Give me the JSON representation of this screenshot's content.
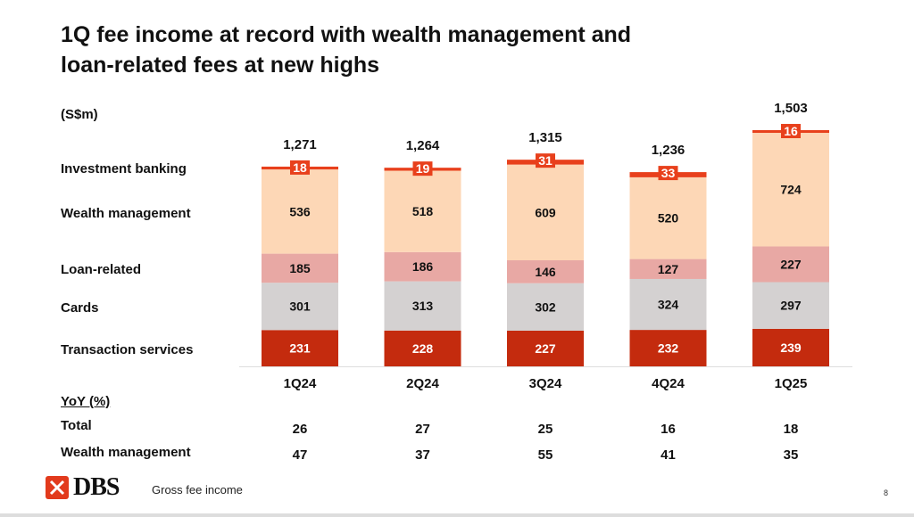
{
  "title_line1": "1Q fee income at record with wealth management and",
  "title_line2": "loan-related fees at new highs",
  "footer": "Gross fee income",
  "page_number": "8",
  "logo_text": "DBS",
  "chart_data": {
    "type": "bar",
    "stacked": true,
    "unit_label": "(S$m)",
    "categories": [
      "1Q24",
      "2Q24",
      "3Q24",
      "4Q24",
      "1Q25"
    ],
    "series": [
      {
        "name": "Transaction services",
        "values": [
          231,
          228,
          227,
          232,
          239
        ],
        "color": "#c42b0e"
      },
      {
        "name": "Cards",
        "values": [
          301,
          313,
          302,
          324,
          297
        ],
        "color": "#d4d1d1"
      },
      {
        "name": "Loan-related",
        "values": [
          185,
          186,
          146,
          127,
          227
        ],
        "color": "#e8a8a4"
      },
      {
        "name": "Wealth management",
        "values": [
          536,
          518,
          609,
          520,
          724
        ],
        "color": "#fdd7b6"
      },
      {
        "name": "Investment banking",
        "values": [
          18,
          19,
          31,
          33,
          16
        ],
        "color": "#e8401c"
      }
    ],
    "totals": [
      "1,271",
      "1,264",
      "1,315",
      "1,236",
      "1,503"
    ],
    "yoy_heading": "YoY (%)",
    "yoy": [
      {
        "name": "Total",
        "values": [
          "26",
          "27",
          "25",
          "16",
          "18"
        ]
      },
      {
        "name": "Wealth management",
        "values": [
          "47",
          "37",
          "55",
          "41",
          "35"
        ]
      }
    ]
  }
}
